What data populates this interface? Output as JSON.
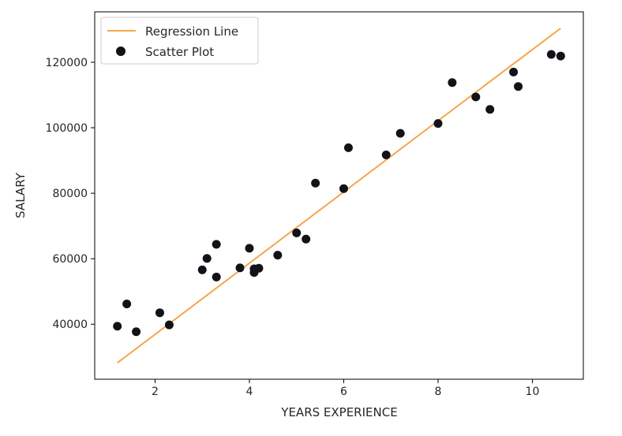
{
  "chart_data": {
    "type": "scatter",
    "title": "",
    "xlabel": "YEARS EXPERIENCE",
    "ylabel": "SALARY",
    "xlim": [
      0.72,
      11.08
    ],
    "ylim": [
      23200,
      135400
    ],
    "xticks": [
      2,
      4,
      6,
      8,
      10
    ],
    "yticks": [
      40000,
      60000,
      80000,
      100000,
      120000
    ],
    "xtick_labels": [
      "2",
      "4",
      "6",
      "8",
      "10"
    ],
    "ytick_labels": [
      "40000",
      "60000",
      "80000",
      "100000",
      "120000"
    ],
    "grid": false,
    "legend_position": "top-left",
    "series": [
      {
        "name": "Regression Line",
        "kind": "line",
        "color": "#f5a64c",
        "points": [
          [
            1.2,
            28200
          ],
          [
            10.6,
            130400
          ]
        ]
      },
      {
        "name": "Scatter Plot",
        "kind": "scatter",
        "color": "#111318",
        "points": [
          [
            1.2,
            39400
          ],
          [
            1.4,
            46200
          ],
          [
            1.6,
            37700
          ],
          [
            2.1,
            43500
          ],
          [
            2.3,
            39800
          ],
          [
            3.0,
            56600
          ],
          [
            3.1,
            60100
          ],
          [
            3.3,
            54400
          ],
          [
            3.3,
            64400
          ],
          [
            3.8,
            57200
          ],
          [
            4.0,
            63200
          ],
          [
            4.1,
            55800
          ],
          [
            4.1,
            56900
          ],
          [
            4.2,
            57100
          ],
          [
            4.6,
            61100
          ],
          [
            5.0,
            67900
          ],
          [
            5.2,
            66000
          ],
          [
            5.4,
            83100
          ],
          [
            6.0,
            81400
          ],
          [
            6.1,
            93900
          ],
          [
            6.9,
            91700
          ],
          [
            7.2,
            98300
          ],
          [
            8.0,
            101300
          ],
          [
            8.3,
            113800
          ],
          [
            8.8,
            109400
          ],
          [
            9.1,
            105600
          ],
          [
            9.6,
            117000
          ],
          [
            9.7,
            112600
          ],
          [
            10.4,
            122400
          ],
          [
            10.6,
            121900
          ]
        ]
      }
    ]
  }
}
